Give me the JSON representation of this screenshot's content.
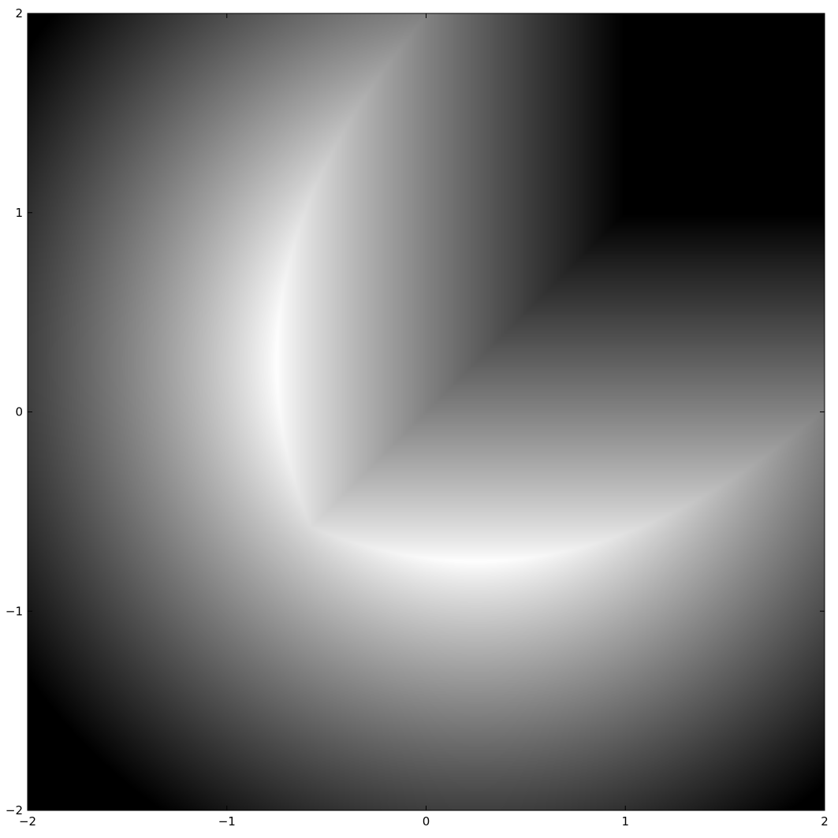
{
  "chart_data": {
    "type": "heatmap",
    "title": "",
    "xlabel": "",
    "ylabel": "",
    "xlim": [
      -2,
      2
    ],
    "ylim": [
      -2,
      2
    ],
    "x_ticks": [
      -2,
      -1,
      0,
      1,
      2
    ],
    "y_ticks": [
      -2,
      -1,
      0,
      1,
      2
    ],
    "x_tick_labels": [
      "−2",
      "−1",
      "0",
      "1",
      "2"
    ],
    "y_tick_labels": [
      "−2",
      "−1",
      "0",
      "1",
      "2"
    ],
    "grid": false,
    "legend": "none",
    "colormap": "grayscale outside the shape, rainbow (blue, cyan, green, yellow, red, black) inside",
    "scalar_field": "signed distance to a disk of radius 1 centered at (0.25, 0.25) minus the rotated square region x > -0.75, y > -0.75",
    "shapes": [
      {
        "name": "disk",
        "center": [
          0.25,
          0.25
        ],
        "radius": 1.0
      },
      {
        "name": "subtracted-quadrant",
        "corner": [
          -0.75,
          -0.75
        ]
      }
    ]
  }
}
